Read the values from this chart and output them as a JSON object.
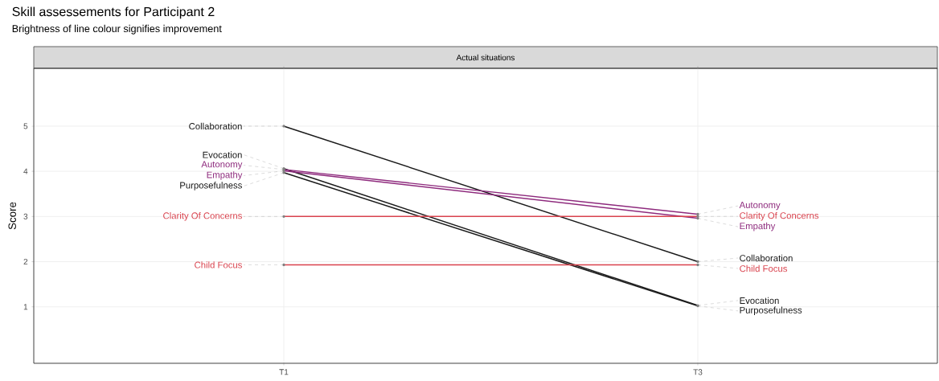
{
  "chart_data": {
    "type": "line",
    "title": "Skill assessements for Participant 2",
    "subtitle": "Brightness of line colour signifies improvement",
    "ylabel": "Score",
    "annotations": [
      "Actual situations"
    ],
    "categories": [
      "T1",
      "T3"
    ],
    "series": [
      {
        "name": "Collaboration",
        "color": "#1a1a1a",
        "values": [
          5.0,
          2.0
        ]
      },
      {
        "name": "Evocation",
        "color": "#1a1a1a",
        "values": [
          4.06,
          1.03
        ]
      },
      {
        "name": "Autonomy",
        "color": "#8e2a7d",
        "values": [
          4.04,
          3.05
        ]
      },
      {
        "name": "Empathy",
        "color": "#8e2a7d",
        "values": [
          4.01,
          2.96
        ]
      },
      {
        "name": "Purposefulness",
        "color": "#1a1a1a",
        "values": [
          3.97,
          1.02
        ]
      },
      {
        "name": "Clarity Of Concerns",
        "color": "#d9434e",
        "values": [
          3.0,
          3.0
        ]
      },
      {
        "name": "Child Focus",
        "color": "#d9434e",
        "values": [
          1.93,
          1.93
        ]
      }
    ],
    "ylim": [
      -0.25,
      6.28
    ],
    "yticks": [
      1,
      2,
      3,
      4,
      5
    ],
    "grid": true,
    "marker": "circle",
    "line_style": "solid"
  }
}
